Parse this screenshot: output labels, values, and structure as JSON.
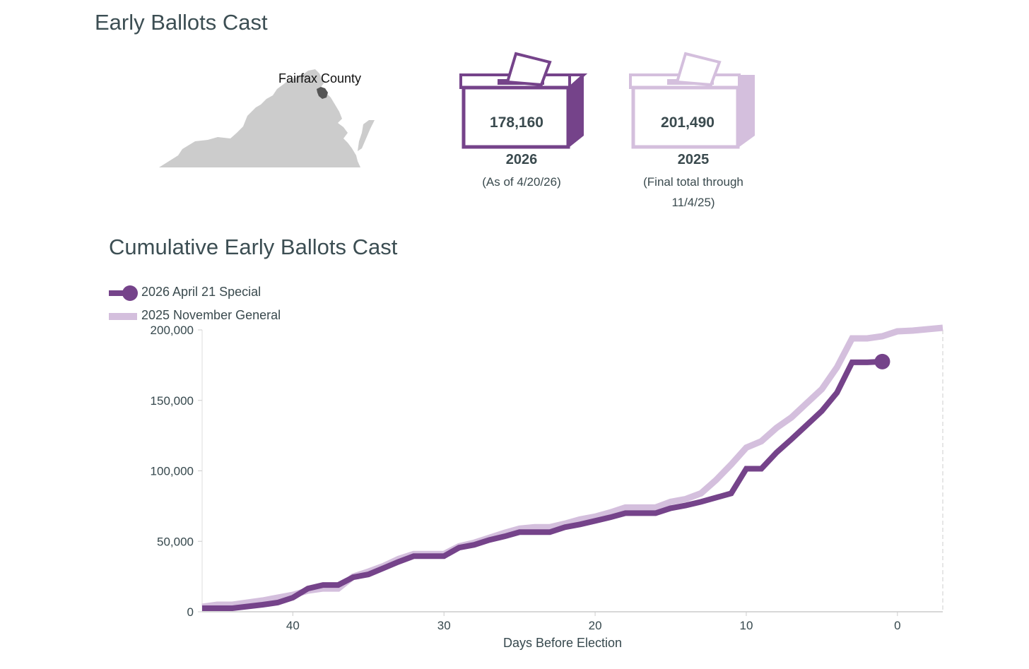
{
  "title": "Early Ballots Cast",
  "map": {
    "label": "Fairfax County"
  },
  "boxes": [
    {
      "value": "178,160",
      "year": "2026",
      "note": "(As of 4/20/26)",
      "color": "#75438a"
    },
    {
      "value": "201,490",
      "year": "2025",
      "note": "(Final total through 11/4/25)",
      "color": "#d4bfdd"
    }
  ],
  "chart_title": "Cumulative Early Ballots Cast",
  "colors": {
    "series_2026": "#75438a",
    "series_2025": "#d4bfdd",
    "text": "#36484d",
    "map": "#cccccc",
    "county": "#555555"
  },
  "chart_data": {
    "type": "line",
    "xlabel": "Days Before Election",
    "ylabel": "",
    "xlim": [
      46,
      -3
    ],
    "ylim": [
      0,
      200000
    ],
    "x_ticks": [
      "40",
      "30",
      "20",
      "10",
      "0"
    ],
    "x_tick_values": [
      40,
      30,
      20,
      10,
      0
    ],
    "y_ticks": [
      "0",
      "50,000",
      "100,000",
      "150,000",
      "200,000"
    ],
    "y_tick_values": [
      0,
      50000,
      100000,
      150000,
      200000
    ],
    "legend_position": "top-left",
    "series": [
      {
        "name": "2026 April 21 Special",
        "color": "#75438a",
        "end_marker": true,
        "points": [
          [
            46,
            2500
          ],
          [
            44,
            2500
          ],
          [
            42,
            5000
          ],
          [
            41,
            6500
          ],
          [
            40,
            10000
          ],
          [
            39,
            16500
          ],
          [
            38,
            19000
          ],
          [
            37,
            19000
          ],
          [
            36,
            24500
          ],
          [
            35,
            26500
          ],
          [
            34,
            31000
          ],
          [
            33,
            35500
          ],
          [
            32,
            39500
          ],
          [
            31,
            39500
          ],
          [
            30,
            39500
          ],
          [
            29,
            45500
          ],
          [
            28,
            47500
          ],
          [
            27,
            51000
          ],
          [
            26,
            53500
          ],
          [
            25,
            56500
          ],
          [
            24,
            56500
          ],
          [
            23,
            56500
          ],
          [
            22,
            60000
          ],
          [
            21,
            62000
          ],
          [
            20,
            64500
          ],
          [
            19,
            67000
          ],
          [
            18,
            70000
          ],
          [
            17,
            70000
          ],
          [
            16,
            70000
          ],
          [
            15,
            73500
          ],
          [
            14,
            75500
          ],
          [
            13,
            78000
          ],
          [
            12,
            81000
          ],
          [
            11,
            84000
          ],
          [
            10,
            101500
          ],
          [
            9,
            101500
          ],
          [
            8,
            113000
          ],
          [
            7,
            122500
          ],
          [
            6,
            132500
          ],
          [
            5,
            142500
          ],
          [
            4,
            155500
          ],
          [
            3,
            177000
          ],
          [
            2,
            177000
          ],
          [
            1,
            177500
          ]
        ]
      },
      {
        "name": "2025 November General",
        "color": "#d4bfdd",
        "end_marker": false,
        "points": [
          [
            46,
            3500
          ],
          [
            45,
            5000
          ],
          [
            44,
            5000
          ],
          [
            42,
            8000
          ],
          [
            40,
            12000
          ],
          [
            39,
            15000
          ],
          [
            38,
            16500
          ],
          [
            37,
            16500
          ],
          [
            36,
            25000
          ],
          [
            35,
            28500
          ],
          [
            34,
            32500
          ],
          [
            33,
            37500
          ],
          [
            32,
            41000
          ],
          [
            31,
            41000
          ],
          [
            30,
            41000
          ],
          [
            29,
            46500
          ],
          [
            28,
            49000
          ],
          [
            27,
            52500
          ],
          [
            26,
            56000
          ],
          [
            25,
            59000
          ],
          [
            24,
            60000
          ],
          [
            23,
            60000
          ],
          [
            22,
            62500
          ],
          [
            21,
            65500
          ],
          [
            20,
            67500
          ],
          [
            19,
            70500
          ],
          [
            18,
            74000
          ],
          [
            17,
            74000
          ],
          [
            16,
            74000
          ],
          [
            15,
            78000
          ],
          [
            14,
            80000
          ],
          [
            13,
            84000
          ],
          [
            12,
            93500
          ],
          [
            11,
            104500
          ],
          [
            10,
            116500
          ],
          [
            9,
            121000
          ],
          [
            8,
            130500
          ],
          [
            7,
            138000
          ],
          [
            6,
            148000
          ],
          [
            5,
            158000
          ],
          [
            4,
            173500
          ],
          [
            3,
            194000
          ],
          [
            2,
            194000
          ],
          [
            1,
            195500
          ],
          [
            0,
            199000
          ],
          [
            -1,
            199500
          ],
          [
            -3,
            201490
          ]
        ]
      }
    ]
  }
}
